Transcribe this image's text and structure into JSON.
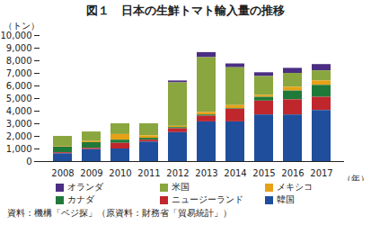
{
  "chart_data": {
    "type": "bar",
    "title": "図１　日本の生鮮トマト輸入量の推移",
    "y_label": "（トン）",
    "x_label": "（年）",
    "caption": "資料：機構「ベジ探」（原資料：財務省「貿易統計」）",
    "stacked": true,
    "grid": false,
    "legend": "bottom",
    "categories": [
      "2008",
      "2009",
      "2010",
      "2011",
      "2012",
      "2013",
      "2014",
      "2015",
      "2016",
      "2017"
    ],
    "series": [
      {
        "name": "オランダ",
        "color": "#4b2e83",
        "values": [
          0,
          0,
          0,
          0,
          150,
          400,
          300,
          300,
          400,
          500
        ]
      },
      {
        "name": "米国",
        "color": "#8aa63f",
        "values": [
          800,
          750,
          850,
          950,
          3450,
          4350,
          3000,
          1500,
          1100,
          800
        ]
      },
      {
        "name": "メキシコ",
        "color": "#e6a117",
        "values": [
          50,
          100,
          450,
          200,
          100,
          200,
          250,
          150,
          300,
          350
        ]
      },
      {
        "name": "カナダ",
        "color": "#1f7a3a",
        "values": [
          450,
          450,
          250,
          150,
          100,
          100,
          50,
          300,
          700,
          950
        ]
      },
      {
        "name": "ニュージーランド",
        "color": "#c0272d",
        "values": [
          80,
          100,
          450,
          150,
          300,
          450,
          1000,
          1100,
          1200,
          1050
        ]
      },
      {
        "name": "韓国",
        "color": "#1f4e9c",
        "values": [
          620,
          950,
          1000,
          1550,
          2300,
          3150,
          3150,
          3700,
          3700,
          4050
        ]
      }
    ],
    "ylim": [
      0,
      10000
    ],
    "yticks": [
      0,
      {
        "value": 1000,
        "label": "1,000"
      },
      {
        "value": 2000,
        "label": "2,000"
      },
      {
        "value": 3000,
        "label": "3,000"
      },
      {
        "value": 4000,
        "label": "4,000"
      },
      {
        "value": 5000,
        "label": "5,000"
      },
      {
        "value": 6000,
        "label": "6,000"
      },
      {
        "value": 7000,
        "label": "7,000"
      },
      {
        "value": 8000,
        "label": "8,000"
      },
      {
        "value": 9000,
        "label": "9,000"
      },
      {
        "value": 10000,
        "label": "10,000"
      }
    ]
  }
}
